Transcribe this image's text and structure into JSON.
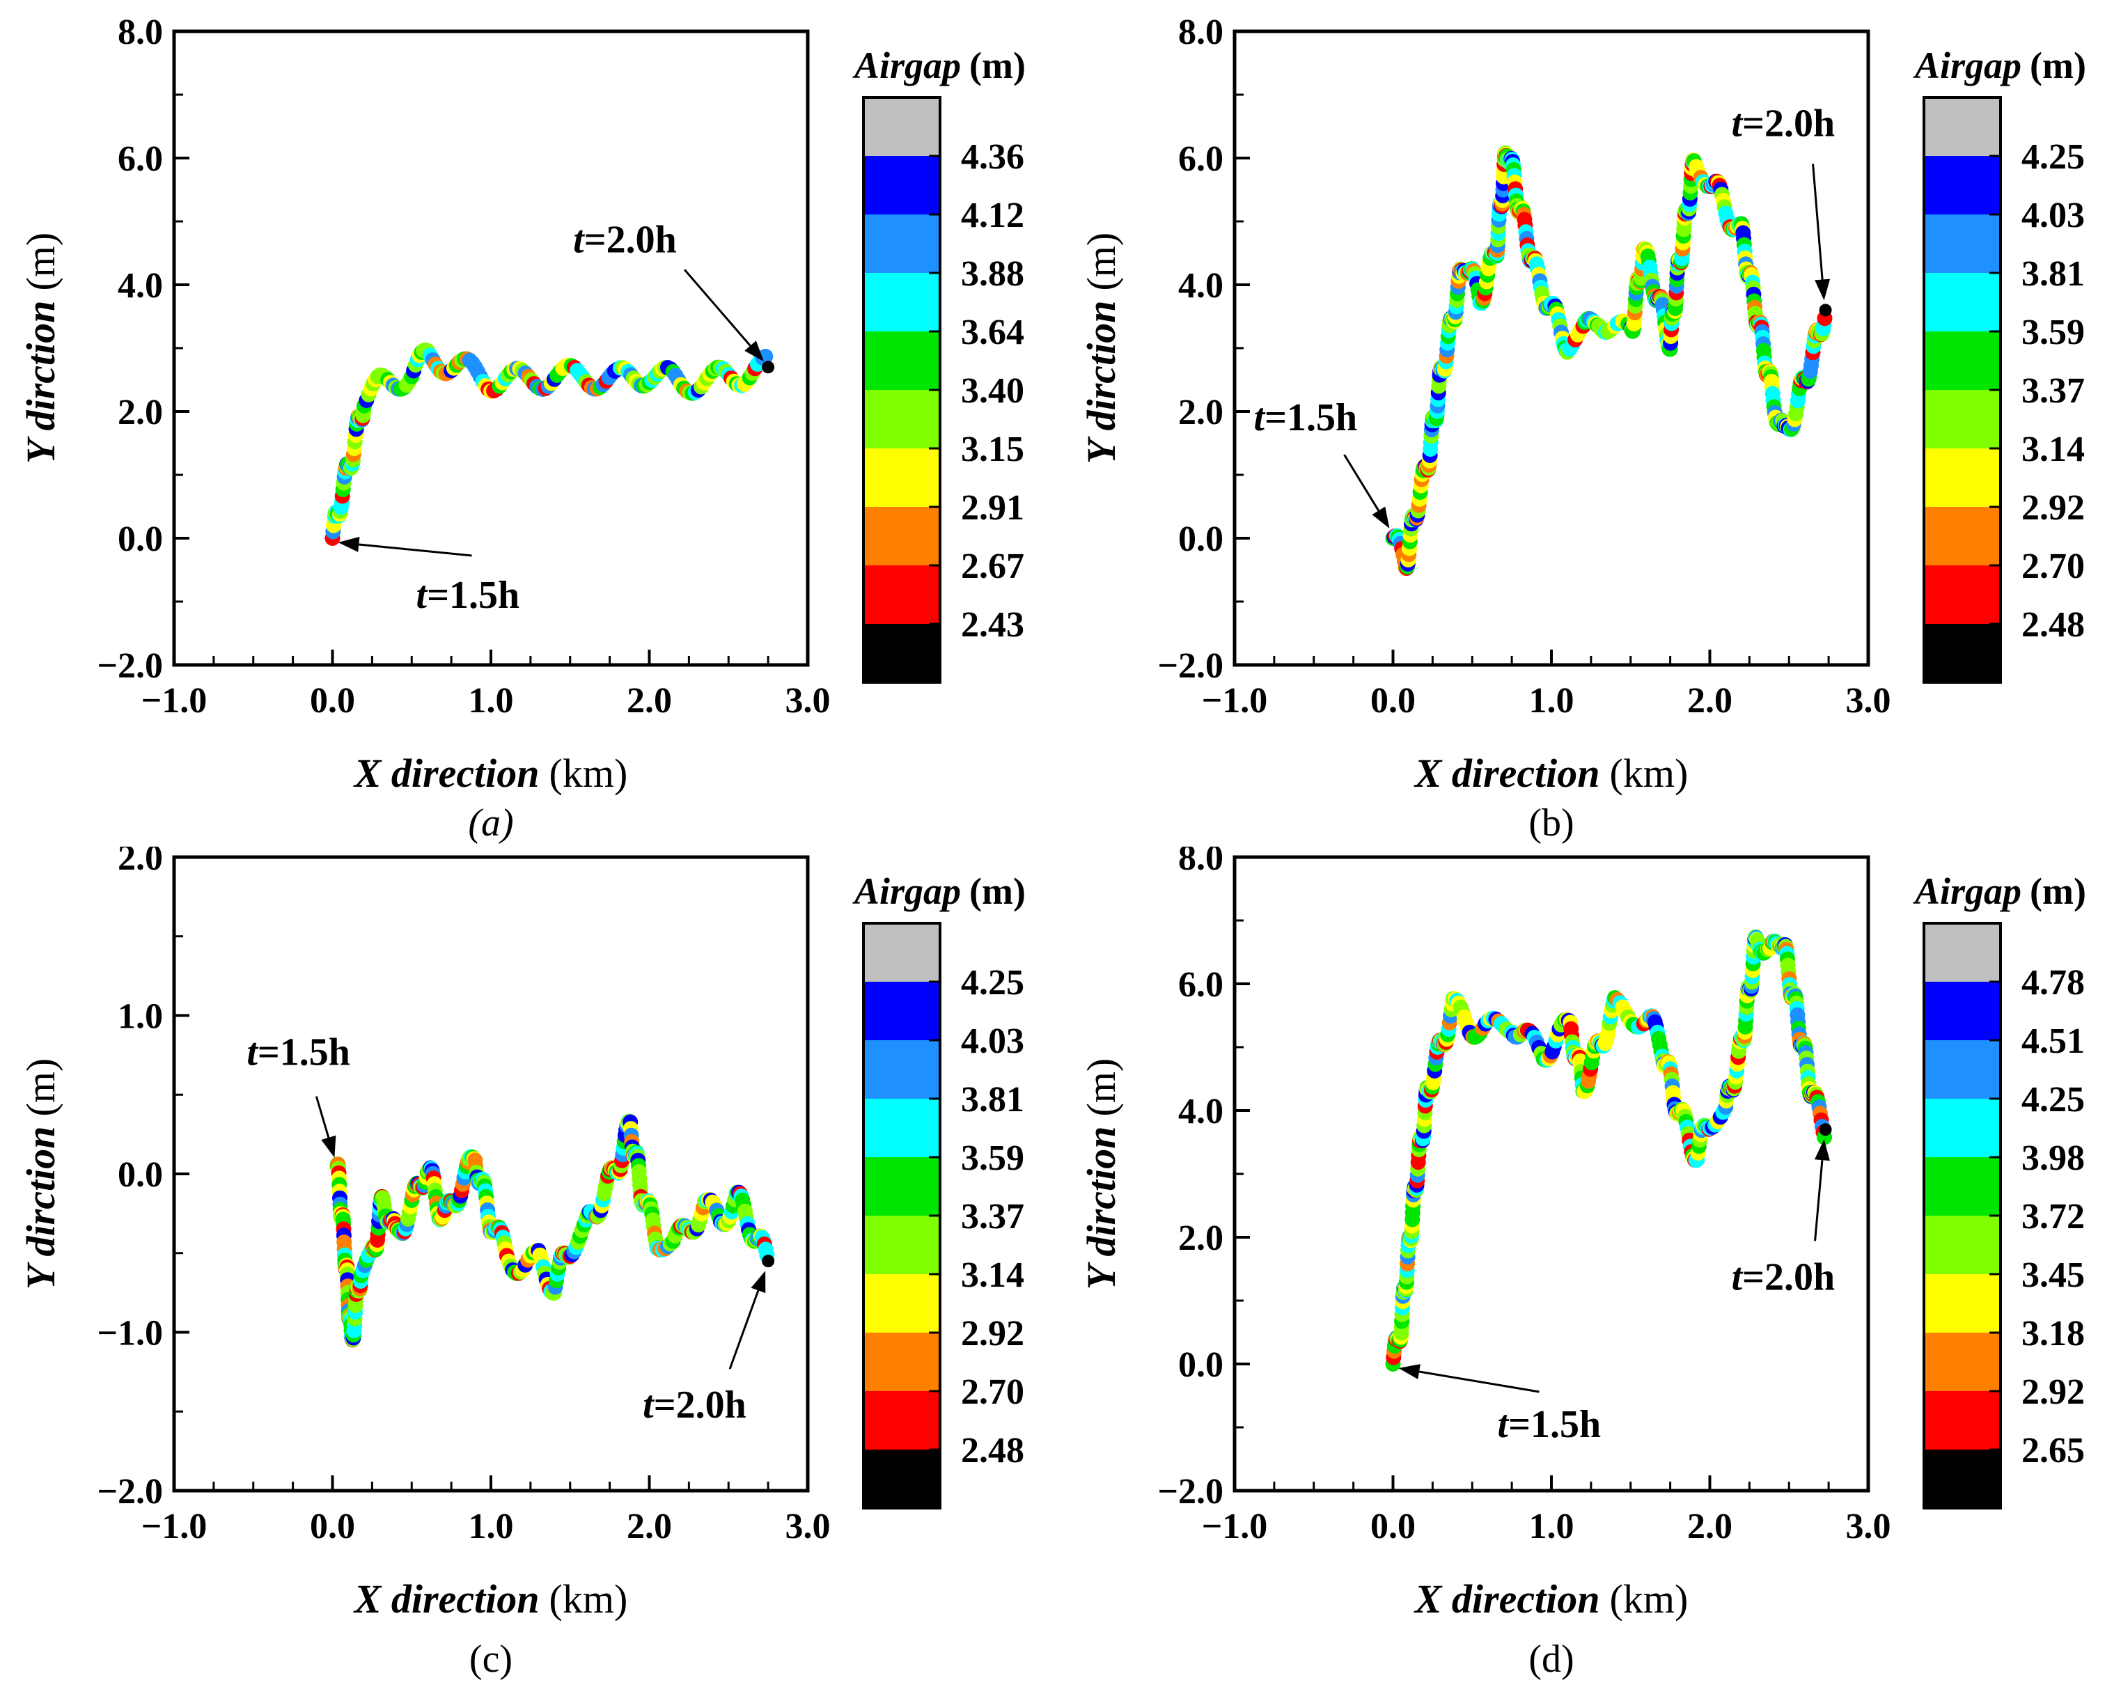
{
  "figure": {
    "colors": [
      "#000000",
      "#ff0000",
      "#ff8000",
      "#ffff00",
      "#80ff00",
      "#00e600",
      "#00ffff",
      "#1e90ff",
      "#0000ff",
      "#c0c0c0"
    ]
  },
  "chart_data": [
    {
      "type": "scatter",
      "panel": "a",
      "caption": "(a)",
      "xlabel_italic": "X direction",
      "xlabel_unit": "(km)",
      "ylabel_italic": "Y dirction",
      "ylabel_unit": "(m)",
      "xlim": [
        -1.0,
        3.0
      ],
      "ylim": [
        -2.0,
        8.0
      ],
      "xticks": [
        "−1.0",
        "0.0",
        "1.0",
        "2.0",
        "3.0"
      ],
      "xtick_values": [
        -1,
        0,
        1,
        2,
        3
      ],
      "yticks": [
        "−2.0",
        "0.0",
        "2.0",
        "4.0",
        "6.0",
        "8.0"
      ],
      "ytick_values": [
        -2,
        0,
        2,
        4,
        6,
        8
      ],
      "colorbar_title_italic": "Airgap",
      "colorbar_title_unit": "(m)",
      "colorbar_ticks": [
        "2.43",
        "2.67",
        "2.91",
        "3.15",
        "3.40",
        "3.64",
        "3.88",
        "4.12",
        "4.36"
      ],
      "start_label": "=1.5h",
      "end_label": "=2.0h",
      "label_t": "t",
      "start": [
        0.0,
        0.0
      ],
      "end": [
        2.75,
        2.7
      ],
      "path": [
        [
          0.0,
          0.0
        ],
        [
          0.05,
          0.6
        ],
        [
          0.1,
          1.1
        ],
        [
          0.15,
          1.6
        ],
        [
          0.2,
          2.2
        ],
        [
          0.3,
          2.4
        ],
        [
          0.4,
          2.5
        ],
        [
          0.5,
          2.6
        ],
        [
          0.6,
          2.85
        ],
        [
          0.75,
          2.75
        ],
        [
          0.9,
          2.6
        ],
        [
          1.0,
          2.5
        ],
        [
          1.2,
          2.5
        ],
        [
          1.4,
          2.55
        ],
        [
          1.6,
          2.55
        ],
        [
          1.8,
          2.5
        ],
        [
          2.0,
          2.6
        ],
        [
          2.2,
          2.45
        ],
        [
          2.4,
          2.5
        ],
        [
          2.6,
          2.6
        ],
        [
          2.75,
          2.7
        ]
      ]
    },
    {
      "type": "scatter",
      "panel": "b",
      "caption": "(b)",
      "xlabel_italic": "X direction",
      "xlabel_unit": "(km)",
      "ylabel_italic": "Y dirction",
      "ylabel_unit": "(m)",
      "xlim": [
        -1.0,
        3.0
      ],
      "ylim": [
        -2.0,
        8.0
      ],
      "xticks": [
        "−1.0",
        "0.0",
        "1.0",
        "2.0",
        "3.0"
      ],
      "xtick_values": [
        -1,
        0,
        1,
        2,
        3
      ],
      "yticks": [
        "−2.0",
        "0.0",
        "2.0",
        "4.0",
        "6.0",
        "8.0"
      ],
      "ytick_values": [
        -2,
        0,
        2,
        4,
        6,
        8
      ],
      "colorbar_title_italic": "Airgap",
      "colorbar_title_unit": "(m)",
      "colorbar_ticks": [
        "2.48",
        "2.70",
        "2.92",
        "3.14",
        "3.37",
        "3.59",
        "3.81",
        "4.03",
        "4.25"
      ],
      "start_label": "=1.5h",
      "end_label": "=2.0h",
      "label_t": "t",
      "start": [
        0.0,
        0.0
      ],
      "end": [
        2.73,
        3.6
      ],
      "path": [
        [
          0.0,
          0.0
        ],
        [
          0.08,
          -0.4
        ],
        [
          0.15,
          0.5
        ],
        [
          0.22,
          1.2
        ],
        [
          0.3,
          2.5
        ],
        [
          0.38,
          3.5
        ],
        [
          0.45,
          4.4
        ],
        [
          0.55,
          3.8
        ],
        [
          0.65,
          4.5
        ],
        [
          0.72,
          6.2
        ],
        [
          0.8,
          5.2
        ],
        [
          0.9,
          4.2
        ],
        [
          1.0,
          3.6
        ],
        [
          1.1,
          3.1
        ],
        [
          1.2,
          3.2
        ],
        [
          1.3,
          3.5
        ],
        [
          1.4,
          3.3
        ],
        [
          1.5,
          3.2
        ],
        [
          1.58,
          4.5
        ],
        [
          1.65,
          4.0
        ],
        [
          1.75,
          3.1
        ],
        [
          1.8,
          4.2
        ],
        [
          1.9,
          5.9
        ],
        [
          2.0,
          5.7
        ],
        [
          2.1,
          5.2
        ],
        [
          2.2,
          4.8
        ],
        [
          2.3,
          3.5
        ],
        [
          2.4,
          2.2
        ],
        [
          2.47,
          1.6
        ],
        [
          2.55,
          2.1
        ],
        [
          2.65,
          2.9
        ],
        [
          2.73,
          3.6
        ]
      ]
    },
    {
      "type": "scatter",
      "panel": "c",
      "caption": "(c)",
      "xlabel_italic": "X direction",
      "xlabel_unit": "(km)",
      "ylabel_italic": "Y dirction",
      "ylabel_unit": "(m)",
      "xlim": [
        -1.0,
        3.0
      ],
      "ylim": [
        -2.0,
        2.0
      ],
      "xticks": [
        "−1.0",
        "0.0",
        "1.0",
        "2.0",
        "3.0"
      ],
      "xtick_values": [
        -1,
        0,
        1,
        2,
        3
      ],
      "yticks": [
        "−2.0",
        "−1.0",
        "0.0",
        "1.0",
        "2.0"
      ],
      "ytick_values": [
        -2,
        -1,
        0,
        1,
        2
      ],
      "colorbar_title_italic": "Airgap",
      "colorbar_title_unit": "(m)",
      "colorbar_ticks": [
        "2.48",
        "2.70",
        "2.92",
        "3.14",
        "3.37",
        "3.59",
        "3.81",
        "4.03",
        "4.25"
      ],
      "start_label": "=1.5h",
      "end_label": "=2.0h",
      "label_t": "t",
      "start": [
        0.03,
        0.05
      ],
      "end": [
        2.75,
        -0.55
      ],
      "path": [
        [
          0.03,
          0.05
        ],
        [
          0.08,
          -0.5
        ],
        [
          0.12,
          -1.05
        ],
        [
          0.18,
          -0.6
        ],
        [
          0.25,
          -0.55
        ],
        [
          0.32,
          -0.15
        ],
        [
          0.4,
          -0.4
        ],
        [
          0.5,
          -0.2
        ],
        [
          0.6,
          0.05
        ],
        [
          0.7,
          -0.3
        ],
        [
          0.8,
          -0.1
        ],
        [
          0.9,
          0.1
        ],
        [
          1.0,
          -0.3
        ],
        [
          1.1,
          -0.5
        ],
        [
          1.2,
          -0.6
        ],
        [
          1.3,
          -0.55
        ],
        [
          1.4,
          -0.7
        ],
        [
          1.5,
          -0.45
        ],
        [
          1.6,
          -0.35
        ],
        [
          1.7,
          -0.15
        ],
        [
          1.8,
          0.05
        ],
        [
          1.88,
          0.3
        ],
        [
          1.95,
          -0.1
        ],
        [
          2.05,
          -0.4
        ],
        [
          2.15,
          -0.45
        ],
        [
          2.25,
          -0.35
        ],
        [
          2.35,
          -0.2
        ],
        [
          2.45,
          -0.3
        ],
        [
          2.55,
          -0.15
        ],
        [
          2.65,
          -0.35
        ],
        [
          2.75,
          -0.55
        ]
      ]
    },
    {
      "type": "scatter",
      "panel": "d",
      "caption": "(d)",
      "xlabel_italic": "X direction",
      "xlabel_unit": "(km)",
      "ylabel_italic": "Y dirction",
      "ylabel_unit": "(m)",
      "xlim": [
        -1.0,
        3.0
      ],
      "ylim": [
        -2.0,
        8.0
      ],
      "xticks": [
        "−1.0",
        "0.0",
        "1.0",
        "2.0",
        "3.0"
      ],
      "xtick_values": [
        -1,
        0,
        1,
        2,
        3
      ],
      "yticks": [
        "−2.0",
        "0.0",
        "2.0",
        "4.0",
        "6.0",
        "8.0"
      ],
      "ytick_values": [
        -2,
        0,
        2,
        4,
        6,
        8
      ],
      "colorbar_title_italic": "Airgap",
      "colorbar_title_unit": "(m)",
      "colorbar_ticks": [
        "2.65",
        "2.92",
        "3.18",
        "3.45",
        "3.72",
        "3.98",
        "4.25",
        "4.51",
        "4.78"
      ],
      "start_label": "=1.5h",
      "end_label": "=2.0h",
      "label_t": "t",
      "start": [
        0.0,
        0.0
      ],
      "end": [
        2.73,
        3.7
      ],
      "path": [
        [
          0.0,
          0.0
        ],
        [
          0.05,
          0.6
        ],
        [
          0.1,
          1.8
        ],
        [
          0.15,
          3.0
        ],
        [
          0.22,
          4.3
        ],
        [
          0.3,
          5.0
        ],
        [
          0.38,
          5.6
        ],
        [
          0.45,
          5.5
        ],
        [
          0.55,
          5.2
        ],
        [
          0.65,
          5.3
        ],
        [
          0.75,
          5.4
        ],
        [
          0.85,
          5.1
        ],
        [
          0.95,
          4.9
        ],
        [
          1.05,
          5.2
        ],
        [
          1.12,
          5.3
        ],
        [
          1.2,
          4.4
        ],
        [
          1.3,
          5.0
        ],
        [
          1.4,
          5.6
        ],
        [
          1.5,
          5.5
        ],
        [
          1.6,
          5.5
        ],
        [
          1.7,
          5.0
        ],
        [
          1.78,
          4.2
        ],
        [
          1.85,
          3.7
        ],
        [
          1.92,
          3.3
        ],
        [
          2.0,
          3.9
        ],
        [
          2.1,
          4.0
        ],
        [
          2.2,
          5.0
        ],
        [
          2.3,
          6.8
        ],
        [
          2.38,
          6.4
        ],
        [
          2.45,
          6.8
        ],
        [
          2.55,
          5.5
        ],
        [
          2.65,
          4.2
        ],
        [
          2.73,
          3.7
        ]
      ]
    }
  ]
}
